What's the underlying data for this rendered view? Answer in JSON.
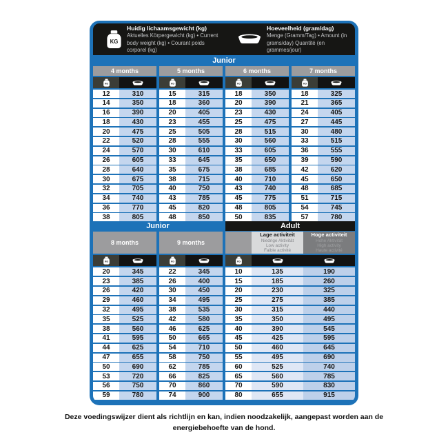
{
  "colors": {
    "blue": "#1d72b8",
    "dark": "#161614",
    "gray": "#9c9c9e",
    "kgcell": "#3b3d37",
    "bowlcell": "#121212",
    "ltblue": "#c4d6ee",
    "lowcell": "#dfe7f5",
    "highcell": "#bdd0ea",
    "lowhdr": "#d9dadb",
    "highhdr": "#7b7c7e",
    "subtext": "#c2c3c5",
    "lowsub": "#85868a",
    "highsub": "#9fa0a2",
    "textdark": "#161616"
  },
  "icons": {
    "weight": "kg-weight-icon",
    "amount": "bowl-icon"
  },
  "legend": {
    "weight": {
      "title": "Huidig lichaamsgewicht (kg)",
      "subtitle": "Aktuelles Körpergewicht (kg) • Current body weight (kg) • Courant poids corporel (kg)"
    },
    "amount": {
      "title": "Hoeveelheid (gram/dag)",
      "subtitle": "Menge (Gramm/Tag) • Amount (in grams/day) Quantité (en grammes/jour)"
    }
  },
  "sections": {
    "junior_top": {
      "band_label": "Junior",
      "columns": [
        {
          "label": "4 months",
          "rows": [
            [
              12,
              310
            ],
            [
              14,
              350
            ],
            [
              16,
              390
            ],
            [
              18,
              430
            ],
            [
              20,
              475
            ],
            [
              22,
              520
            ],
            [
              24,
              570
            ],
            [
              26,
              605
            ],
            [
              28,
              640
            ],
            [
              30,
              675
            ],
            [
              32,
              705
            ],
            [
              34,
              740
            ],
            [
              36,
              770
            ],
            [
              38,
              805
            ]
          ]
        },
        {
          "label": "5 months",
          "rows": [
            [
              15,
              315
            ],
            [
              18,
              360
            ],
            [
              20,
              405
            ],
            [
              23,
              455
            ],
            [
              25,
              505
            ],
            [
              28,
              555
            ],
            [
              30,
              610
            ],
            [
              33,
              645
            ],
            [
              35,
              675
            ],
            [
              38,
              715
            ],
            [
              40,
              750
            ],
            [
              43,
              785
            ],
            [
              45,
              820
            ],
            [
              48,
              850
            ]
          ]
        },
        {
          "label": "6 months",
          "rows": [
            [
              18,
              350
            ],
            [
              20,
              390
            ],
            [
              23,
              430
            ],
            [
              25,
              475
            ],
            [
              28,
              515
            ],
            [
              30,
              560
            ],
            [
              33,
              605
            ],
            [
              35,
              650
            ],
            [
              38,
              685
            ],
            [
              40,
              710
            ],
            [
              43,
              740
            ],
            [
              45,
              775
            ],
            [
              48,
              805
            ],
            [
              50,
              835
            ]
          ]
        },
        {
          "label": "7 months",
          "rows": [
            [
              18,
              325
            ],
            [
              21,
              365
            ],
            [
              24,
              405
            ],
            [
              27,
              445
            ],
            [
              30,
              480
            ],
            [
              33,
              515
            ],
            [
              36,
              555
            ],
            [
              39,
              590
            ],
            [
              42,
              620
            ],
            [
              45,
              650
            ],
            [
              48,
              685
            ],
            [
              51,
              715
            ],
            [
              54,
              745
            ],
            [
              57,
              780
            ]
          ]
        }
      ]
    },
    "junior_bottom": {
      "band_label": "Junior",
      "columns": [
        {
          "label": "8 months",
          "rows": [
            [
              20,
              345
            ],
            [
              23,
              385
            ],
            [
              26,
              420
            ],
            [
              29,
              460
            ],
            [
              32,
              495
            ],
            [
              35,
              525
            ],
            [
              38,
              560
            ],
            [
              41,
              595
            ],
            [
              44,
              625
            ],
            [
              47,
              655
            ],
            [
              50,
              690
            ],
            [
              53,
              720
            ],
            [
              56,
              750
            ],
            [
              59,
              780
            ]
          ]
        },
        {
          "label": "9 months",
          "rows": [
            [
              22,
              345
            ],
            [
              26,
              400
            ],
            [
              30,
              450
            ],
            [
              34,
              495
            ],
            [
              38,
              535
            ],
            [
              42,
              580
            ],
            [
              46,
              625
            ],
            [
              50,
              665
            ],
            [
              54,
              710
            ],
            [
              58,
              750
            ],
            [
              62,
              785
            ],
            [
              66,
              825
            ],
            [
              70,
              860
            ],
            [
              74,
              900
            ]
          ]
        }
      ]
    },
    "adult": {
      "band_label": "Adult",
      "low_header": {
        "title": "Lage activiteit",
        "subtitles": [
          "Niedrige Aktivität",
          "Low activity",
          "Faible activité"
        ]
      },
      "high_header": {
        "title": "Hoge activiteit",
        "subtitles": [
          "Hohe Aktivität",
          "High activity",
          "Haute activité"
        ]
      },
      "rows": [
        [
          10,
          135,
          190
        ],
        [
          15,
          185,
          260
        ],
        [
          20,
          230,
          325
        ],
        [
          25,
          275,
          385
        ],
        [
          30,
          315,
          440
        ],
        [
          35,
          350,
          495
        ],
        [
          40,
          390,
          545
        ],
        [
          45,
          425,
          595
        ],
        [
          50,
          460,
          645
        ],
        [
          55,
          495,
          690
        ],
        [
          60,
          525,
          740
        ],
        [
          65,
          560,
          785
        ],
        [
          70,
          590,
          830
        ],
        [
          80,
          655,
          915
        ]
      ]
    }
  },
  "footer": {
    "lines": [
      "Deze voedingswijzer dient als richtlijn en kan, indien noodzakelijk, aangepast worden aan de",
      "energiebehoefte van de hond."
    ]
  }
}
